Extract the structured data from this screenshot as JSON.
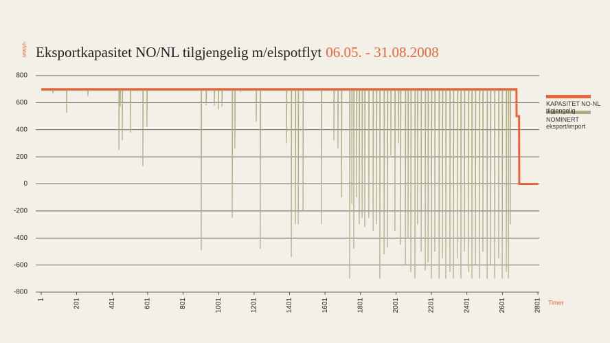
{
  "chart_data": {
    "type": "line",
    "title": "Eksportkapasitet NO/NL tilgjengelig m/elspotflyt",
    "title_period": "06.05. - 31.08.2008",
    "y_label": "MWh/h",
    "x_label": "Timer",
    "xlim": [
      1,
      2801
    ],
    "xticks": [
      1,
      201,
      401,
      601,
      801,
      1001,
      1201,
      1401,
      1601,
      1801,
      2001,
      2201,
      2401,
      2601,
      2801
    ],
    "ylim": [
      -800,
      800
    ],
    "yticks": [
      -800,
      -600,
      -400,
      -200,
      0,
      200,
      400,
      600,
      800
    ],
    "grid": true,
    "legend": "right",
    "series": [
      {
        "name": "KAPASITET NO-NL tilgjengelig",
        "color": "#e8643c",
        "width": 3,
        "x": [
          1,
          2680,
          2681,
          2695,
          2696,
          2801
        ],
        "values": [
          700,
          700,
          500,
          500,
          0,
          0
        ]
      },
      {
        "name": "NOMINERT eksport/import",
        "color": "#aeab85",
        "width": 1.2,
        "x": [
          1,
          67,
          67,
          69,
          144,
          144,
          146,
          264,
          264,
          266,
          439,
          439,
          441,
          446,
          446,
          448,
          458,
          458,
          460,
          504,
          504,
          506,
          574,
          574,
          576,
          597,
          597,
          599,
          903,
          903,
          905,
          931,
          931,
          933,
          977,
          977,
          979,
          1000,
          1000,
          1002,
          1020,
          1020,
          1022,
          1078,
          1078,
          1080,
          1093,
          1093,
          1095,
          1124,
          1124,
          1126,
          1213,
          1213,
          1215,
          1236,
          1236,
          1238,
          1384,
          1384,
          1386,
          1411,
          1411,
          1413,
          1434,
          1434,
          1436,
          1450,
          1450,
          1452,
          1477,
          1477,
          1479,
          1581,
          1581,
          1583,
          1651,
          1651,
          1653,
          1674,
          1674,
          1676,
          1694,
          1694,
          1696,
          1740,
          1740,
          1742,
          1752,
          1752,
          1754,
          1763,
          1763,
          1765,
          1779,
          1779,
          1781,
          1794,
          1794,
          1796,
          1810,
          1810,
          1812,
          1825,
          1825,
          1827,
          1848,
          1848,
          1850,
          1872,
          1872,
          1874,
          1891,
          1891,
          1893,
          1910,
          1910,
          1912,
          1934,
          1934,
          1936,
          1953,
          1953,
          1955,
          1972,
          1972,
          1974,
          1995,
          1995,
          1997,
          2015,
          2015,
          2017,
          2027,
          2027,
          2029,
          2054,
          2054,
          2056,
          2069,
          2069,
          2071,
          2085,
          2085,
          2087,
          2108,
          2108,
          2110,
          2123,
          2123,
          2125,
          2143,
          2143,
          2145,
          2166,
          2166,
          2168,
          2182,
          2182,
          2184,
          2201,
          2201,
          2203,
          2220,
          2220,
          2222,
          2244,
          2244,
          2246,
          2263,
          2263,
          2265,
          2282,
          2282,
          2284,
          2305,
          2305,
          2307,
          2325,
          2325,
          2327,
          2348,
          2348,
          2350,
          2367,
          2367,
          2369,
          2387,
          2387,
          2389,
          2410,
          2410,
          2412,
          2429,
          2429,
          2431,
          2449,
          2449,
          2451,
          2472,
          2472,
          2474,
          2491,
          2491,
          2493,
          2515,
          2515,
          2517,
          2534,
          2534,
          2536,
          2557,
          2557,
          2559,
          2580,
          2580,
          2582,
          2600,
          2600,
          2602,
          2623,
          2623,
          2625,
          2635,
          2635,
          2637,
          2646,
          2646,
          2648,
          2680
        ],
        "values": [
          690,
          690,
          670,
          690,
          690,
          525,
          690,
          690,
          650,
          690,
          690,
          250,
          690,
          690,
          570,
          690,
          690,
          320,
          690,
          690,
          380,
          690,
          690,
          130,
          690,
          690,
          420,
          690,
          690,
          -490,
          690,
          690,
          580,
          690,
          690,
          580,
          690,
          690,
          550,
          690,
          690,
          570,
          690,
          690,
          -250,
          690,
          690,
          260,
          690,
          690,
          680,
          690,
          690,
          460,
          690,
          690,
          -480,
          690,
          690,
          300,
          690,
          690,
          -540,
          690,
          690,
          -300,
          690,
          690,
          -300,
          690,
          690,
          -200,
          690,
          690,
          -300,
          690,
          690,
          320,
          690,
          690,
          260,
          690,
          690,
          -100,
          690,
          690,
          -700,
          690,
          690,
          -150,
          690,
          690,
          -480,
          690,
          690,
          -100,
          690,
          690,
          -300,
          690,
          690,
          -250,
          690,
          690,
          -320,
          690,
          690,
          -250,
          690,
          690,
          -350,
          690,
          690,
          -300,
          690,
          690,
          -700,
          690,
          690,
          -520,
          690,
          690,
          -470,
          690,
          690,
          210,
          690,
          690,
          -350,
          690,
          690,
          300,
          690,
          690,
          -450,
          690,
          690,
          -600,
          690,
          690,
          -400,
          690,
          690,
          -650,
          690,
          690,
          -700,
          690,
          690,
          -300,
          690,
          690,
          -500,
          690,
          690,
          -640,
          690,
          690,
          -580,
          690,
          690,
          -700,
          690,
          690,
          -500,
          690,
          690,
          -700,
          690,
          690,
          -550,
          690,
          690,
          -700,
          690,
          690,
          -650,
          690,
          690,
          -700,
          690,
          690,
          -550,
          690,
          690,
          -700,
          690,
          690,
          -500,
          690,
          690,
          -650,
          690,
          690,
          -700,
          690,
          690,
          -600,
          690,
          690,
          -700,
          690,
          690,
          -500,
          690,
          690,
          -700,
          690,
          690,
          -600,
          690,
          690,
          -700,
          690,
          690,
          -550,
          690,
          690,
          -700,
          690,
          690,
          -650,
          690,
          690,
          -700,
          690,
          690,
          -300,
          690,
          690
        ]
      }
    ]
  }
}
